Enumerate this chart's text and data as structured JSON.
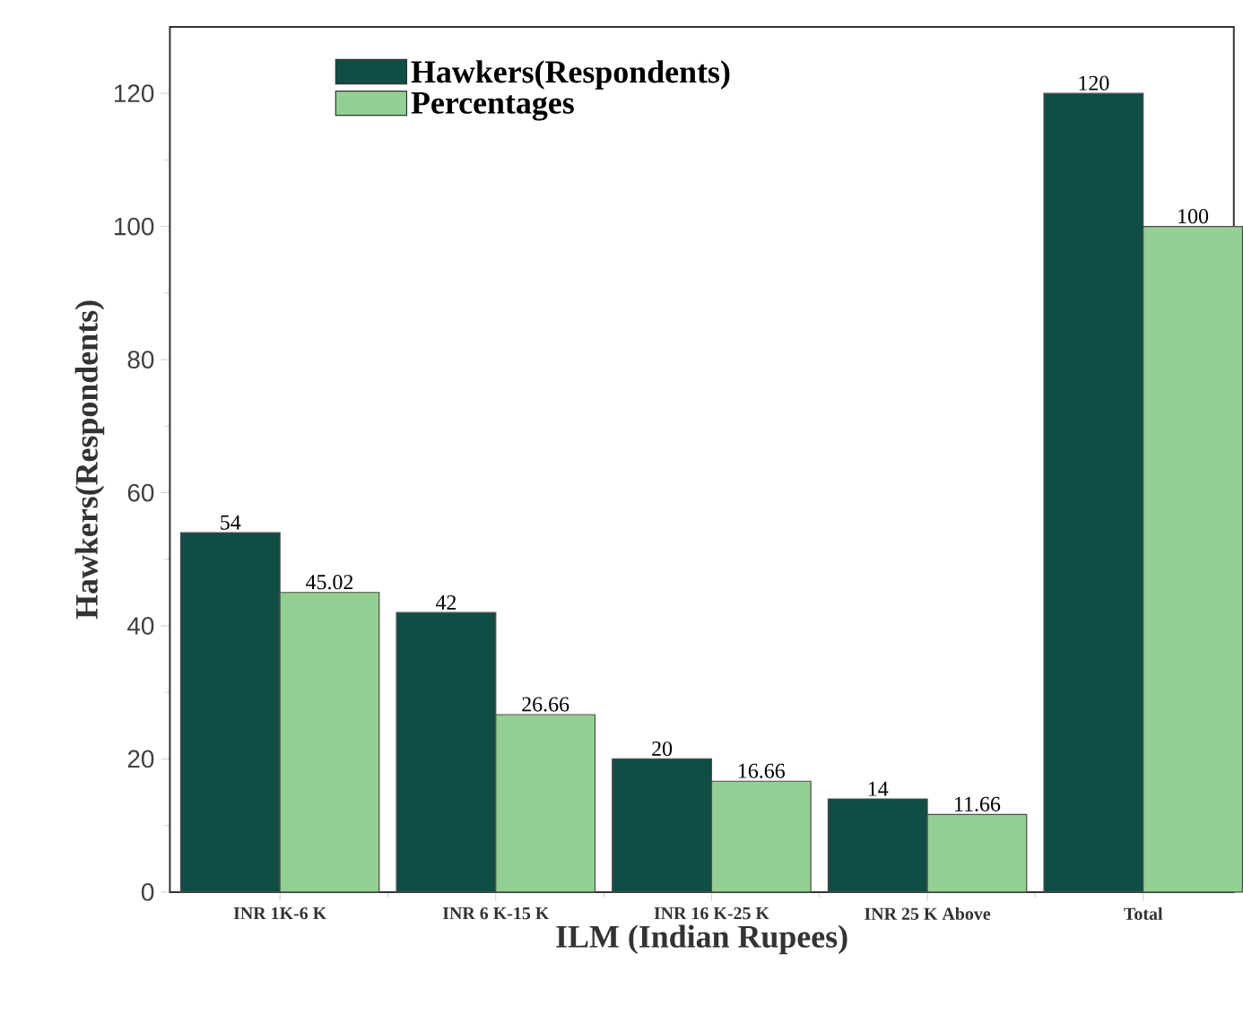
{
  "chart_data": {
    "type": "bar",
    "xlabel": "ILM (Indian Rupees)",
    "ylabel": "Hawkers(Respondents)",
    "categories": [
      "INR 1K-6 K",
      "INR 6 K-15 K",
      "INR 16 K-25 K",
      "INR 25 K Above",
      "Total"
    ],
    "series": [
      {
        "name": "Hawkers(Respondents)",
        "color": "#0f4d45",
        "values": [
          54,
          42,
          20,
          14,
          120
        ]
      },
      {
        "name": "Percentages",
        "color": "#94cf94",
        "values": [
          45.02,
          26.66,
          16.66,
          11.66,
          100
        ]
      }
    ],
    "ylim": [
      0,
      130
    ],
    "yticks": [
      0,
      20,
      40,
      60,
      80,
      100,
      120
    ],
    "data_labels": true,
    "legend": "top left",
    "grid": false
  }
}
